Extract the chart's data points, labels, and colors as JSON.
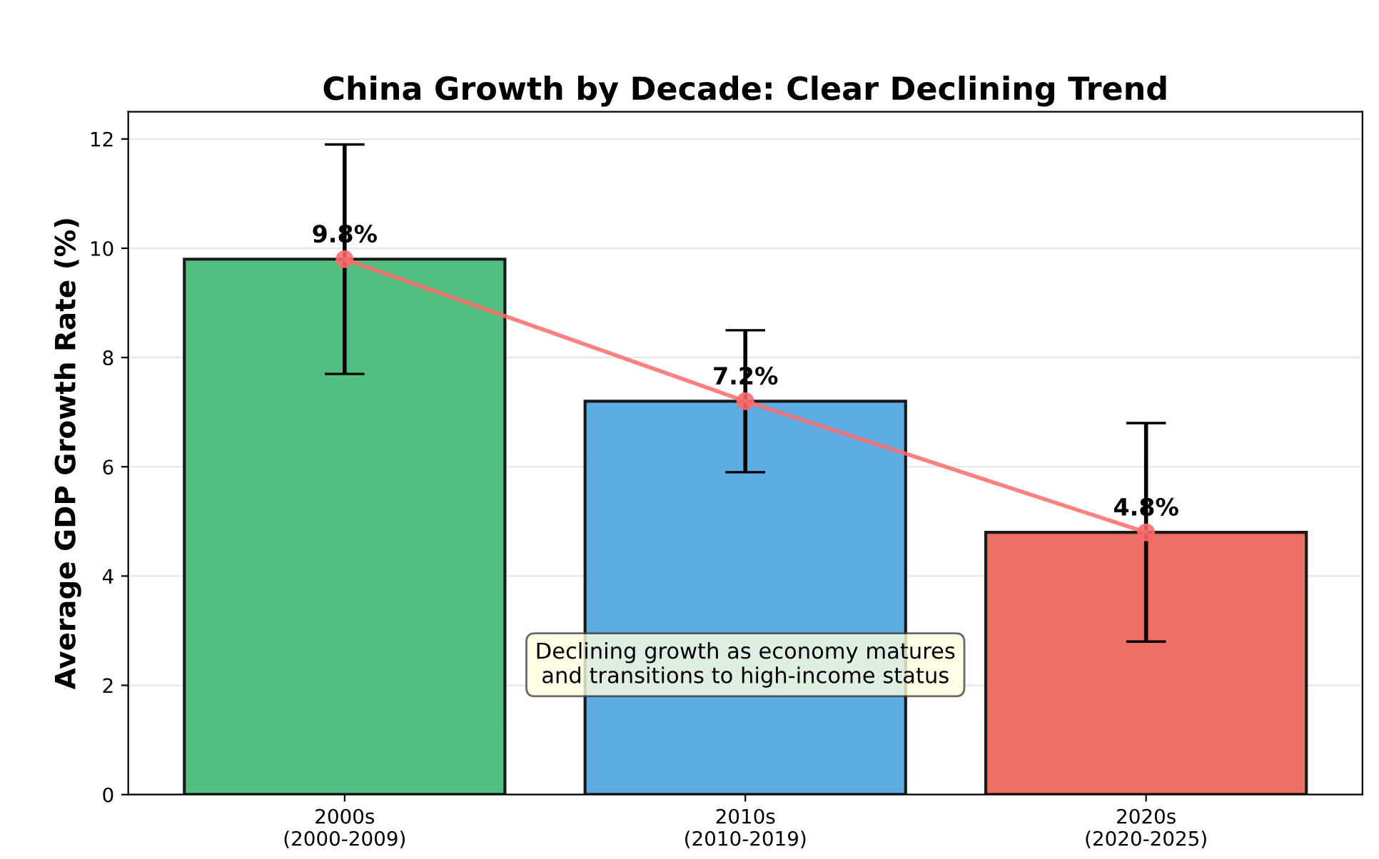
{
  "chart_data": {
    "type": "bar",
    "title": "China Growth by Decade: Clear Declining Trend",
    "ylabel": "Average GDP Growth Rate (%)",
    "categories": [
      "2000s\n(2000-2009)",
      "2010s\n(2010-2019)",
      "2020s\n(2020-2025)"
    ],
    "series": [
      {
        "colors": [
          "#52be80",
          "#5dade2",
          "#ec7063"
        ],
        "values": [
          9.8,
          7.2,
          4.8
        ],
        "errors": [
          2.1,
          1.3,
          2.0
        ],
        "value_labels": [
          "9.8%",
          "7.2%",
          "4.8%"
        ]
      },
      {
        "type": "line",
        "color": "#ff6b6b",
        "values": [
          9.8,
          7.2,
          4.8
        ],
        "marker": "circle"
      }
    ],
    "ylim": [
      0,
      12.5
    ],
    "yticks": [
      0,
      2,
      4,
      6,
      8,
      10,
      12
    ],
    "grid": "y",
    "annotations": [
      "Declining growth as economy matures\nand transitions to high-income status"
    ]
  }
}
